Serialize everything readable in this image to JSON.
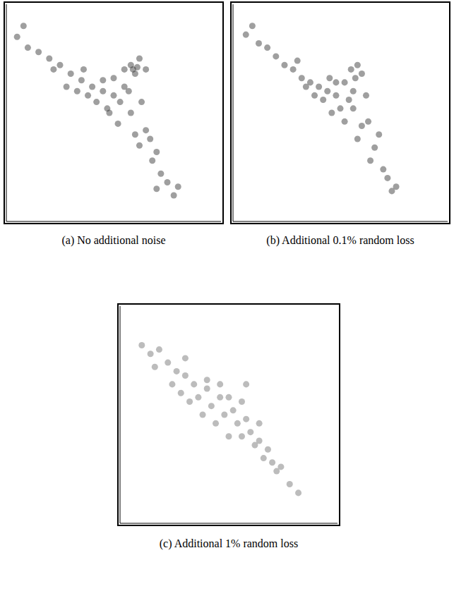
{
  "chart_data": [
    {
      "type": "scatter",
      "title": "(a) No additional noise",
      "xlim": [
        0,
        100
      ],
      "ylim": [
        0,
        100
      ],
      "tick_labels": false,
      "color": "#2b2b2b",
      "x": [
        5,
        8,
        10,
        15,
        20,
        25,
        22,
        30,
        35,
        28,
        40,
        45,
        42,
        50,
        55,
        58,
        60,
        62,
        65,
        55,
        48,
        52,
        58,
        60,
        65,
        62,
        70,
        68,
        72,
        75,
        70,
        78,
        80,
        45,
        38,
        33,
        50,
        57,
        53,
        63,
        59,
        61,
        47,
        36,
        67
      ],
      "values": [
        85,
        90,
        80,
        78,
        75,
        72,
        70,
        68,
        65,
        62,
        62,
        60,
        55,
        58,
        70,
        72,
        68,
        75,
        70,
        62,
        50,
        45,
        50,
        40,
        42,
        35,
        32,
        28,
        22,
        18,
        15,
        12,
        16,
        65,
        58,
        60,
        66,
        60,
        55,
        55,
        70,
        71,
        52,
        70,
        38
      ]
    },
    {
      "type": "scatter",
      "title": "(b) Additional 0.1% random loss",
      "xlim": [
        0,
        100
      ],
      "ylim": [
        0,
        100
      ],
      "tick_labels": false,
      "color": "#2b2b2b",
      "x": [
        6,
        9,
        12,
        16,
        20,
        24,
        28,
        32,
        30,
        36,
        40,
        44,
        42,
        48,
        52,
        55,
        58,
        60,
        56,
        50,
        46,
        52,
        56,
        60,
        63,
        58,
        66,
        64,
        70,
        72,
        76,
        74,
        38,
        34,
        45,
        54,
        62,
        48,
        57,
        68
      ],
      "values": [
        86,
        90,
        82,
        80,
        76,
        72,
        70,
        66,
        74,
        64,
        62,
        60,
        56,
        58,
        64,
        70,
        72,
        68,
        60,
        52,
        50,
        46,
        52,
        44,
        46,
        38,
        34,
        28,
        24,
        20,
        16,
        14,
        58,
        62,
        66,
        56,
        58,
        64,
        66,
        40
      ]
    },
    {
      "type": "scatter",
      "title": "(c) Additional 1% random loss",
      "xlim": [
        0,
        100
      ],
      "ylim": [
        0,
        100
      ],
      "tick_labels": false,
      "color": "#6a6a6a",
      "x": [
        10,
        14,
        18,
        16,
        22,
        26,
        24,
        30,
        28,
        34,
        36,
        32,
        40,
        42,
        38,
        46,
        48,
        44,
        52,
        54,
        50,
        58,
        56,
        60,
        62,
        64,
        66,
        68,
        70,
        72,
        74,
        78,
        82,
        40,
        50,
        56,
        30,
        64,
        46,
        58
      ],
      "values": [
        82,
        78,
        80,
        72,
        74,
        70,
        64,
        68,
        60,
        64,
        58,
        56,
        62,
        54,
        50,
        58,
        50,
        46,
        52,
        46,
        40,
        48,
        40,
        42,
        36,
        38,
        30,
        34,
        28,
        24,
        26,
        18,
        14,
        66,
        58,
        56,
        76,
        46,
        64,
        64
      ]
    }
  ]
}
